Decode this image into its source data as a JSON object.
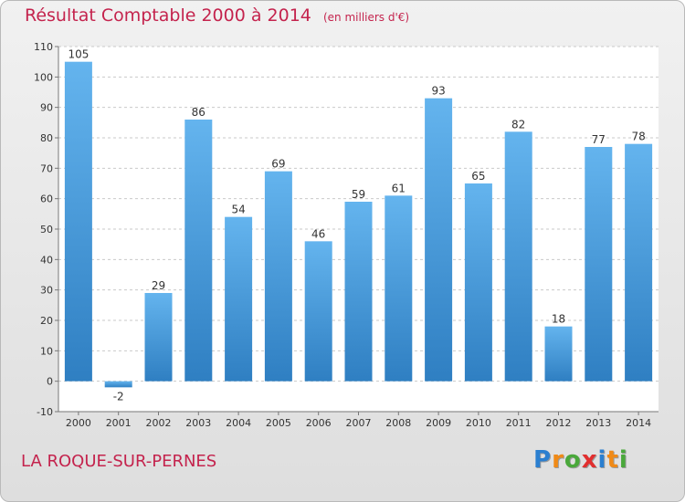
{
  "title": "Résultat Comptable 2000 à 2014",
  "subtitle": "(en milliers d'€)",
  "commune": "LA ROQUE-SUR-PERNES",
  "logo": {
    "letters": [
      "P",
      "r",
      "o",
      "x",
      "i",
      "t",
      "i"
    ],
    "colors": [
      "#2b7fd0",
      "#f08a17",
      "#4aa83b",
      "#e12f2f",
      "#2b7fd0",
      "#f08a17",
      "#4aa83b"
    ]
  },
  "colors": {
    "title": "#c4234d",
    "bar_light": "#64b4ee",
    "bar_dark": "#2f7fc2",
    "grid": "#c9c9c9"
  },
  "chart_data": {
    "type": "bar",
    "title": "Résultat Comptable 2000 à 2014",
    "categories": [
      "2000",
      "2001",
      "2002",
      "2003",
      "2004",
      "2005",
      "2006",
      "2007",
      "2008",
      "2009",
      "2010",
      "2011",
      "2012",
      "2013",
      "2014"
    ],
    "values": [
      105,
      -2,
      29,
      86,
      54,
      69,
      46,
      59,
      61,
      93,
      65,
      82,
      18,
      77,
      78
    ],
    "xlabel": "",
    "ylabel": "",
    "ylim": [
      -10,
      110
    ],
    "yticks": [
      -10,
      0,
      10,
      20,
      30,
      40,
      50,
      60,
      70,
      80,
      90,
      100,
      110
    ],
    "grid": true,
    "legend": "none"
  }
}
